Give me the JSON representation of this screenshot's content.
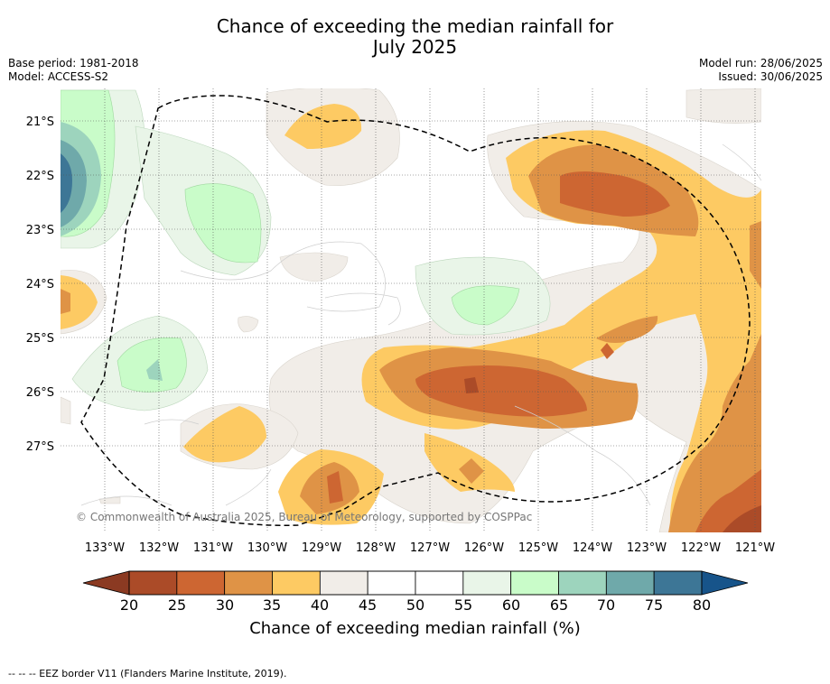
{
  "title_line1": "Chance of exceeding the median rainfall for",
  "title_line2": "July 2025",
  "meta_left": {
    "base_period": "Base period: 1981-2018",
    "model": "Model: ACCESS-S2"
  },
  "meta_right": {
    "model_run": "Model run: 28/06/2025",
    "issued": "Issued: 30/06/2025"
  },
  "map": {
    "lat_labels": [
      "21°S",
      "22°S",
      "23°S",
      "24°S",
      "25°S",
      "26°S",
      "27°S"
    ],
    "lon_labels": [
      "133°W",
      "132°W",
      "131°W",
      "130°W",
      "129°W",
      "128°W",
      "127°W",
      "126°W",
      "125°W",
      "124°W",
      "123°W",
      "122°W",
      "121°W"
    ],
    "copyright": "© Commonwealth of Australia 2025, Bureau of Meteorology, supported by COSPPac"
  },
  "colorbar": {
    "ticks": [
      "20",
      "25",
      "30",
      "35",
      "40",
      "45",
      "50",
      "55",
      "60",
      "65",
      "70",
      "75",
      "80"
    ],
    "colors": [
      "#ab4b28",
      "#cd6632",
      "#df9346",
      "#fdca63",
      "#f1ede8",
      "#ffffff",
      "#ffffff",
      "#e9f5e8",
      "#c9fcc9",
      "#9dd4bd",
      "#6fa9aa",
      "#3d7696"
    ],
    "under_color": "#8b3a22",
    "over_color": "#17548a",
    "label": "Chance of exceeding median rainfall (%)"
  },
  "footnote": "-- -- -- EEZ border V11 (Flanders Marine Institute, 2019)."
}
